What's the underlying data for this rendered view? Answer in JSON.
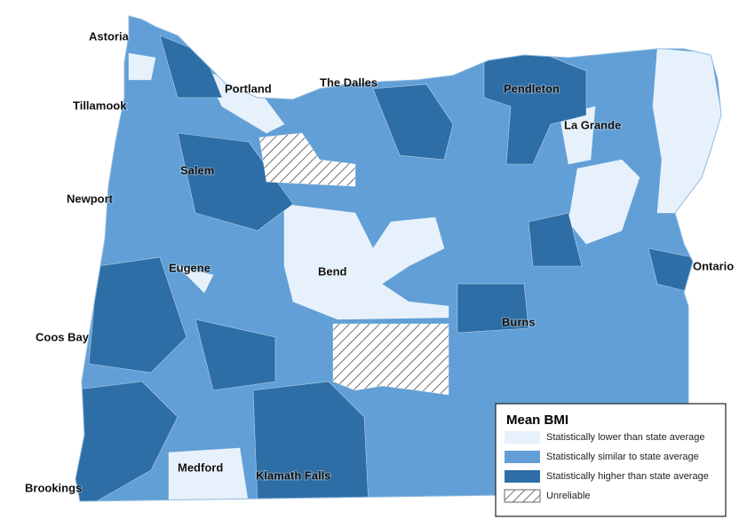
{
  "legend": {
    "title": "Mean BMI",
    "items": [
      {
        "label": "Statistically lower than state average",
        "color": "#e6f1fb"
      },
      {
        "label": "Statistically similar to state average",
        "color": "#619fd6"
      },
      {
        "label": "Statistically higher than state average",
        "color": "#2e6ea6"
      },
      {
        "label": "Unreliable",
        "pattern": "hatch"
      }
    ]
  },
  "cities": [
    "Astoria",
    "Tillamook",
    "Portland",
    "The Dalles",
    "Pendleton",
    "La Grande",
    "Salem",
    "Newport",
    "Eugene",
    "Bend",
    "Ontario",
    "Coos Bay",
    "Burns",
    "Medford",
    "Klamath Falls",
    "Brookings"
  ]
}
